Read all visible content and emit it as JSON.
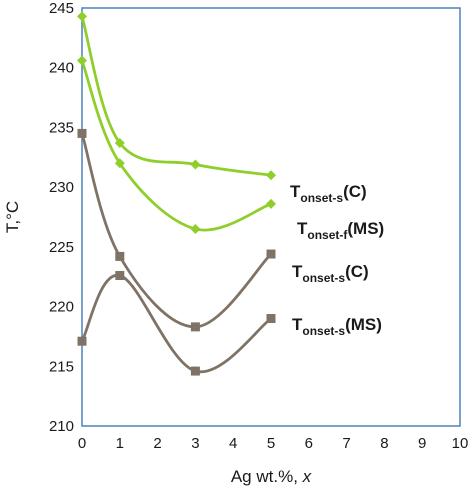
{
  "chart_data": {
    "type": "line",
    "xlabel": "Ag wt.%, x",
    "ylabel": "T,°C",
    "xlim": [
      0,
      10
    ],
    "ylim": [
      210,
      245
    ],
    "xticks": [
      0,
      1,
      2,
      3,
      4,
      5,
      6,
      7,
      8,
      9,
      10
    ],
    "yticks": [
      210,
      215,
      220,
      225,
      230,
      235,
      240,
      245
    ],
    "grid": false,
    "frame_color": "#4f81bd",
    "series": [
      {
        "label": {
          "main": "T",
          "sub": "onset-s",
          "suffix": "(C)"
        },
        "color": "#8fce2b",
        "marker": "diamond",
        "x": [
          0,
          1,
          3,
          5
        ],
        "y": [
          244.3,
          233.7,
          231.9,
          231.0
        ]
      },
      {
        "label": {
          "main": "T",
          "sub": "onset-f",
          "suffix": "(MS)"
        },
        "color": "#8fce2b",
        "marker": "diamond",
        "x": [
          0,
          1,
          3,
          5
        ],
        "y": [
          240.6,
          232.0,
          226.5,
          228.6
        ]
      },
      {
        "label": {
          "main": "T",
          "sub": "onset-s",
          "suffix": "(C)"
        },
        "color": "#7f7366",
        "marker": "square",
        "x": [
          0,
          1,
          3,
          5
        ],
        "y": [
          234.5,
          224.2,
          218.3,
          224.4
        ]
      },
      {
        "label": {
          "main": "T",
          "sub": "onset-s",
          "suffix": "(MS)"
        },
        "color": "#7f7366",
        "marker": "square",
        "x": [
          0,
          1,
          3,
          5
        ],
        "y": [
          217.1,
          222.6,
          214.6,
          219.0
        ]
      }
    ]
  }
}
